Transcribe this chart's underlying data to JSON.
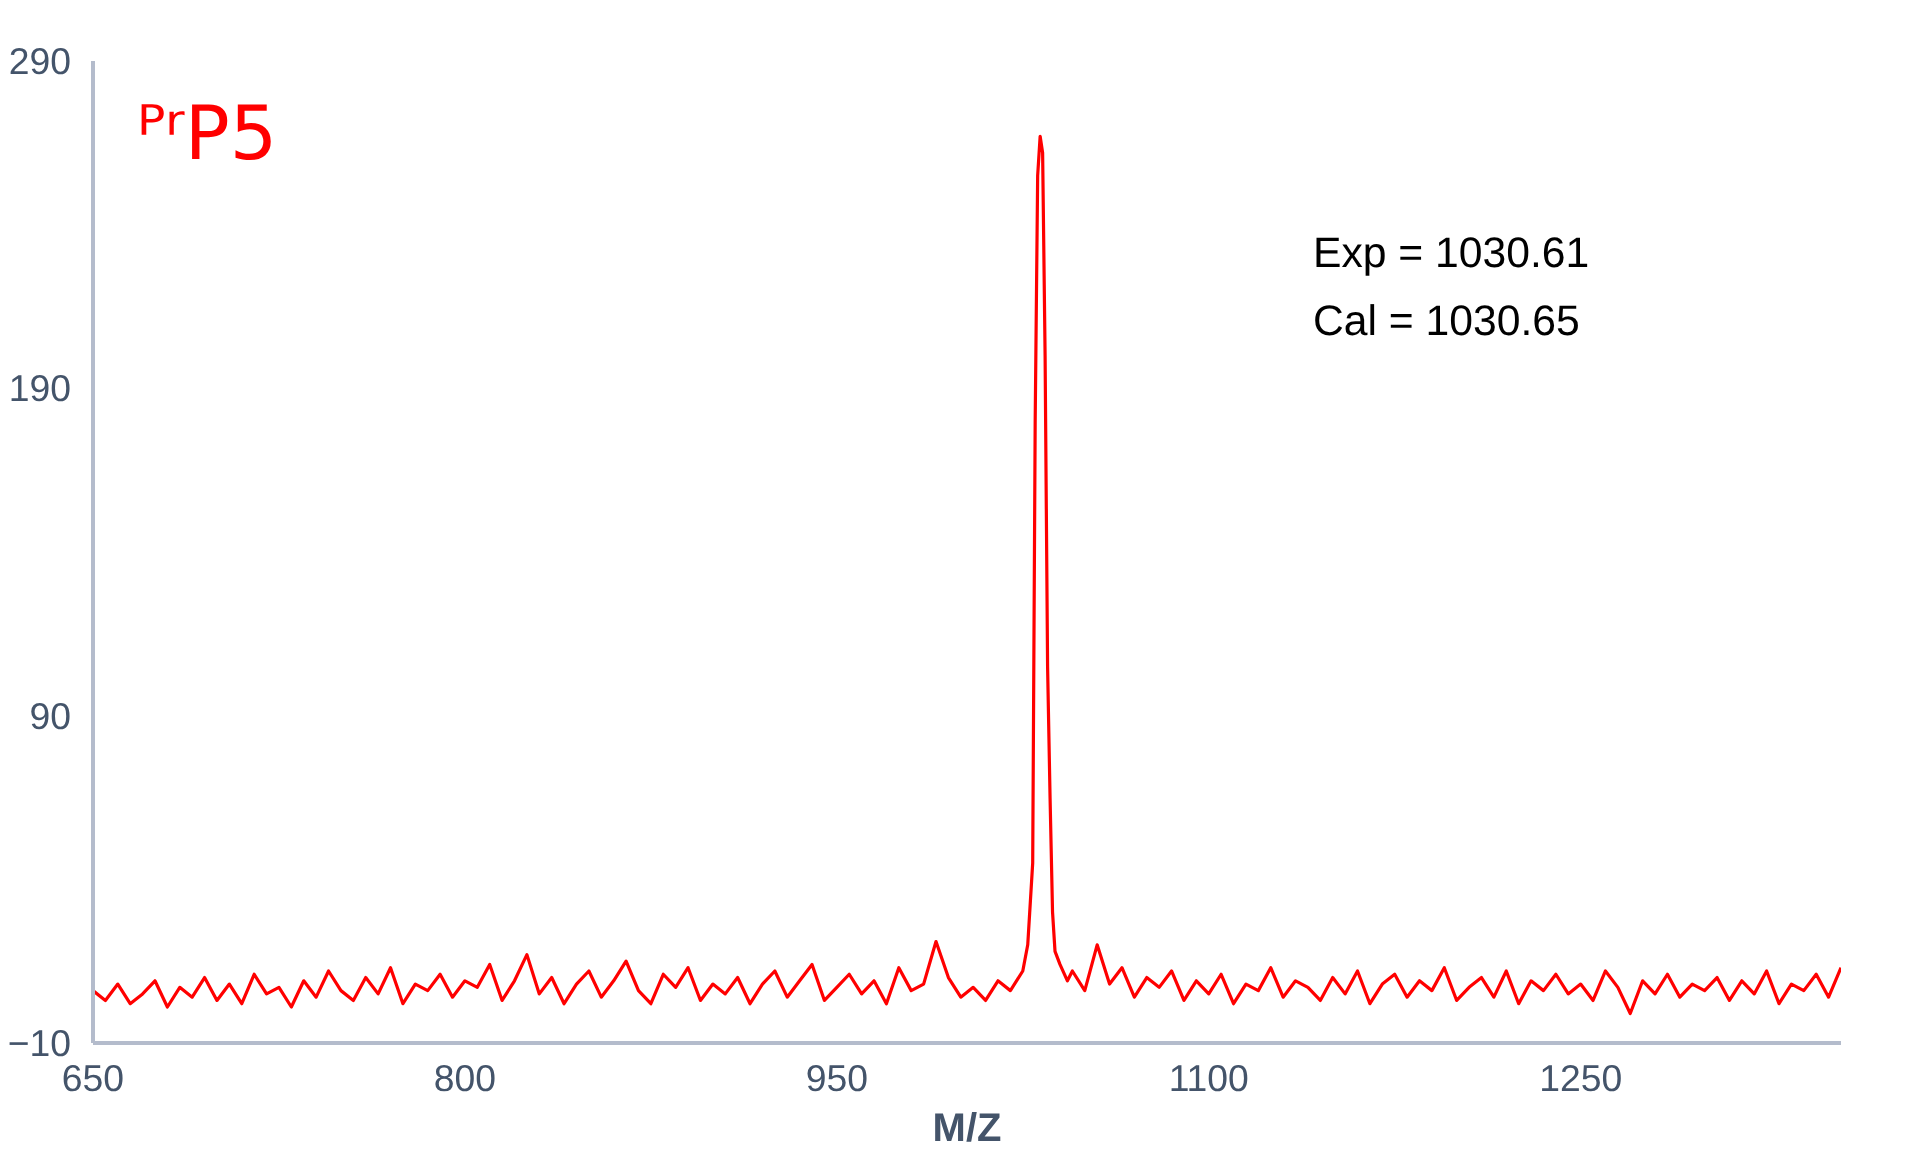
{
  "chart_data": {
    "type": "line",
    "title": "ᴾʳP5",
    "xlabel": "M/Z",
    "annotations": [
      "Exp = 1030.61",
      "Cal = 1030.65"
    ],
    "xlim": [
      650,
      1355
    ],
    "xticks": [
      650,
      800,
      950,
      1100,
      1250
    ],
    "ylim": [
      -10,
      290
    ],
    "yticks": [
      -10,
      90,
      190,
      290
    ],
    "grid": false,
    "marker": "none",
    "line_style": "solid",
    "series": [
      {
        "color": "#ff0000",
        "x": [
          650,
          655,
          660,
          665,
          670,
          675,
          680,
          685,
          690,
          695,
          700,
          705,
          710,
          715,
          720,
          725,
          730,
          735,
          740,
          745,
          750,
          755,
          760,
          765,
          770,
          775,
          780,
          785,
          790,
          795,
          800,
          805,
          810,
          815,
          820,
          825,
          830,
          835,
          840,
          845,
          850,
          855,
          860,
          865,
          870,
          875,
          880,
          885,
          890,
          895,
          900,
          905,
          910,
          915,
          920,
          925,
          930,
          935,
          940,
          945,
          950,
          955,
          960,
          965,
          970,
          975,
          980,
          985,
          990,
          995,
          1000,
          1005,
          1010,
          1015,
          1020,
          1025,
          1027,
          1029,
          1030,
          1031,
          1032,
          1033,
          1034,
          1035,
          1036,
          1037,
          1038,
          1040,
          1043,
          1045,
          1050,
          1055,
          1060,
          1065,
          1070,
          1075,
          1080,
          1085,
          1090,
          1095,
          1100,
          1105,
          1110,
          1115,
          1120,
          1125,
          1130,
          1135,
          1140,
          1145,
          1150,
          1155,
          1160,
          1165,
          1170,
          1175,
          1180,
          1185,
          1190,
          1195,
          1200,
          1205,
          1210,
          1215,
          1220,
          1225,
          1230,
          1235,
          1240,
          1245,
          1250,
          1255,
          1260,
          1265,
          1270,
          1275,
          1280,
          1285,
          1290,
          1295,
          1300,
          1305,
          1310,
          1315,
          1320,
          1325,
          1330,
          1335,
          1340,
          1345,
          1350,
          1355
        ],
        "values": [
          6,
          3,
          8,
          2,
          5,
          9,
          1,
          7,
          4,
          10,
          3,
          8,
          2,
          11,
          5,
          7,
          1,
          9,
          4,
          12,
          6,
          3,
          10,
          5,
          13,
          2,
          8,
          6,
          11,
          4,
          9,
          7,
          14,
          3,
          9,
          17,
          5,
          10,
          2,
          8,
          12,
          4,
          9,
          15,
          6,
          2,
          11,
          7,
          13,
          3,
          8,
          5,
          10,
          2,
          8,
          12,
          4,
          9,
          14,
          3,
          7,
          11,
          5,
          9,
          2,
          13,
          6,
          8,
          21,
          10,
          4,
          7,
          3,
          9,
          6,
          12,
          20,
          45,
          180,
          255,
          267,
          262,
          200,
          105,
          65,
          30,
          18,
          14,
          9,
          12,
          6,
          20,
          8,
          13,
          4,
          10,
          7,
          12,
          3,
          9,
          5,
          11,
          2,
          8,
          6,
          13,
          4,
          9,
          7,
          3,
          10,
          5,
          12,
          2,
          8,
          11,
          4,
          9,
          6,
          13,
          3,
          7,
          10,
          4,
          12,
          2,
          9,
          6,
          11,
          5,
          8,
          3,
          12,
          7,
          -1,
          9,
          5,
          11,
          4,
          8,
          6,
          10,
          3,
          9,
          5,
          12,
          2,
          8,
          6,
          11,
          4,
          13
        ]
      }
    ]
  }
}
